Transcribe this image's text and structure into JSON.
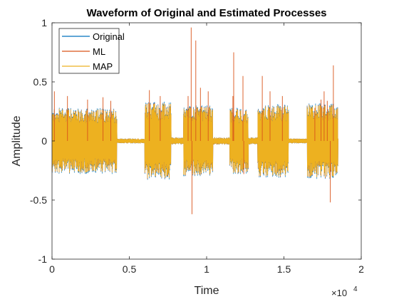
{
  "chart_data": {
    "type": "line",
    "title": "Waveform of Original and Estimated Processes",
    "xlabel": "Time",
    "ylabel": "Amplitude",
    "x_exponent_label": "×10",
    "x_exponent_power": "4",
    "xlim": [
      0,
      20000
    ],
    "ylim": [
      -1,
      1
    ],
    "x_ticks": [
      0,
      5000,
      10000,
      15000,
      20000
    ],
    "x_tick_labels": [
      "0",
      "0.5",
      "1",
      "1.5",
      "2"
    ],
    "y_ticks": [
      -1,
      -0.5,
      0,
      0.5,
      1
    ],
    "y_tick_labels": [
      "-1",
      "-0.5",
      "0",
      "0.5",
      "1"
    ],
    "grid": false,
    "legend_position": "top-left",
    "x_end": 18500,
    "segments": [
      {
        "start": 0,
        "end": 4200,
        "amp": 0.27
      },
      {
        "start": 4200,
        "end": 6000,
        "amp": 0.02
      },
      {
        "start": 6000,
        "end": 7700,
        "amp": 0.32
      },
      {
        "start": 7700,
        "end": 8500,
        "amp": 0.03
      },
      {
        "start": 8500,
        "end": 10400,
        "amp": 0.29
      },
      {
        "start": 10400,
        "end": 11500,
        "amp": 0.03
      },
      {
        "start": 11500,
        "end": 12700,
        "amp": 0.27
      },
      {
        "start": 12700,
        "end": 13300,
        "amp": 0.03
      },
      {
        "start": 13300,
        "end": 15300,
        "amp": 0.3
      },
      {
        "start": 15300,
        "end": 16500,
        "amp": 0.02
      },
      {
        "start": 16500,
        "end": 18500,
        "amp": 0.31
      }
    ],
    "ml_spikes": [
      {
        "x": 150,
        "y": 0.42
      },
      {
        "x": 1000,
        "y": 0.38
      },
      {
        "x": 2300,
        "y": 0.35
      },
      {
        "x": 3300,
        "y": 0.37
      },
      {
        "x": 3800,
        "y": 0.34
      },
      {
        "x": 6300,
        "y": 0.43
      },
      {
        "x": 7000,
        "y": 0.38
      },
      {
        "x": 8800,
        "y": 0.38
      },
      {
        "x": 9000,
        "y": 0.96
      },
      {
        "x": 9050,
        "y": -0.62
      },
      {
        "x": 9300,
        "y": 0.85
      },
      {
        "x": 9600,
        "y": 0.45
      },
      {
        "x": 10100,
        "y": 0.42
      },
      {
        "x": 11700,
        "y": 0.38
      },
      {
        "x": 11750,
        "y": 0.75
      },
      {
        "x": 12350,
        "y": 0.55
      },
      {
        "x": 12400,
        "y": -0.28
      },
      {
        "x": 13600,
        "y": 0.55
      },
      {
        "x": 14100,
        "y": 0.42
      },
      {
        "x": 14900,
        "y": 0.38
      },
      {
        "x": 17000,
        "y": 0.28
      },
      {
        "x": 17400,
        "y": 0.35
      },
      {
        "x": 17600,
        "y": 0.42
      },
      {
        "x": 17800,
        "y": 0.34
      },
      {
        "x": 18000,
        "y": -0.52
      },
      {
        "x": 18200,
        "y": 0.64
      }
    ],
    "series": [
      {
        "name": "Original",
        "color": "#0072BD"
      },
      {
        "name": "ML",
        "color": "#D95319"
      },
      {
        "name": "MAP",
        "color": "#EDB120"
      }
    ]
  }
}
